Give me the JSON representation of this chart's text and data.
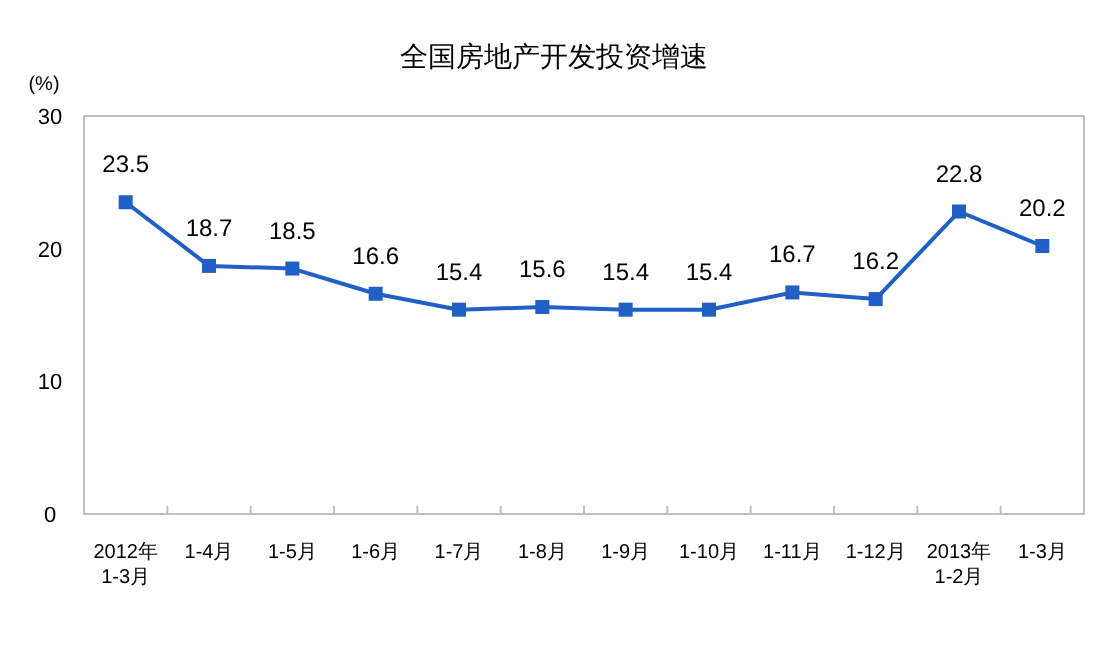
{
  "chart_data": {
    "type": "line",
    "title": "全国房地产开发投资增速",
    "ylabel": "(%)",
    "categories": [
      "2012年\n1-3月",
      "1-4月",
      "1-5月",
      "1-6月",
      "1-7月",
      "1-8月",
      "1-9月",
      "1-10月",
      "1-11月",
      "1-12月",
      "2013年\n1-2月",
      "1-3月"
    ],
    "series": [
      {
        "color": "#1f5fc6",
        "values": [
          23.5,
          18.7,
          18.5,
          16.6,
          15.4,
          15.6,
          15.4,
          15.4,
          16.7,
          16.2,
          22.8,
          20.2
        ]
      }
    ],
    "ylim": [
      0,
      30
    ],
    "yticks": [
      0,
      10,
      20,
      30
    ],
    "grid": false,
    "marker": "square",
    "line_style": "solid",
    "data_labels": true
  }
}
